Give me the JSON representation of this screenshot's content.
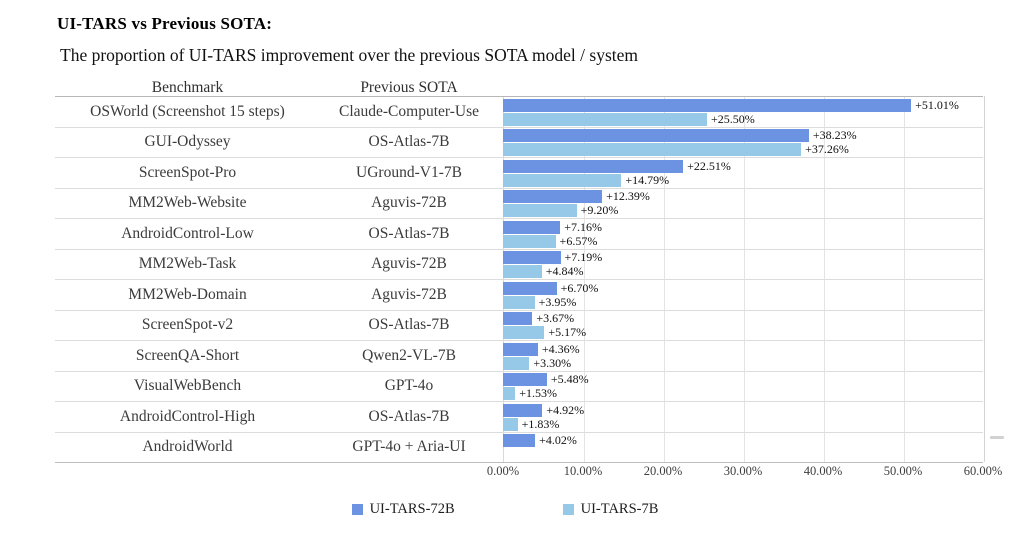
{
  "header": {
    "title": "UI-TARS vs Previous SOTA:",
    "subtitle": "The proportion of UI-TARS improvement over the previous SOTA model / system"
  },
  "table": {
    "columns": [
      "Benchmark",
      "Previous SOTA"
    ]
  },
  "chart_data": {
    "type": "bar",
    "orientation": "horizontal",
    "title": "UI-TARS vs Previous SOTA",
    "xlabel": "",
    "ylabel": "",
    "xlim": [
      0,
      60
    ],
    "x_ticks": [
      "0.00%",
      "10.00%",
      "20.00%",
      "30.00%",
      "40.00%",
      "50.00%",
      "60.00%"
    ],
    "grid": true,
    "legend_position": "bottom",
    "series": [
      {
        "name": "UI-TARS-72B",
        "color": "#6B93E2"
      },
      {
        "name": "UI-TARS-7B",
        "color": "#96C8E8"
      }
    ],
    "rows": [
      {
        "benchmark": "OSWorld (Screenshot 15 steps)",
        "previous_sota": "Claude-Computer-Use",
        "ui_tars_72b": 51.01,
        "ui_tars_7b": 25.5,
        "labels": [
          "+51.01%",
          "+25.50%"
        ]
      },
      {
        "benchmark": "GUI-Odyssey",
        "previous_sota": "OS-Atlas-7B",
        "ui_tars_72b": 38.23,
        "ui_tars_7b": 37.26,
        "labels": [
          "+38.23%",
          "+37.26%"
        ]
      },
      {
        "benchmark": "ScreenSpot-Pro",
        "previous_sota": "UGround-V1-7B",
        "ui_tars_72b": 22.51,
        "ui_tars_7b": 14.79,
        "labels": [
          "+22.51%",
          "+14.79%"
        ]
      },
      {
        "benchmark": "MM2Web-Website",
        "previous_sota": "Aguvis-72B",
        "ui_tars_72b": 12.39,
        "ui_tars_7b": 9.2,
        "labels": [
          "+12.39%",
          "+9.20%"
        ]
      },
      {
        "benchmark": "AndroidControl-Low",
        "previous_sota": "OS-Atlas-7B",
        "ui_tars_72b": 7.16,
        "ui_tars_7b": 6.57,
        "labels": [
          "+7.16%",
          "+6.57%"
        ]
      },
      {
        "benchmark": "MM2Web-Task",
        "previous_sota": "Aguvis-72B",
        "ui_tars_72b": 7.19,
        "ui_tars_7b": 4.84,
        "labels": [
          "+7.19%",
          "+4.84%"
        ]
      },
      {
        "benchmark": "MM2Web-Domain",
        "previous_sota": "Aguvis-72B",
        "ui_tars_72b": 6.7,
        "ui_tars_7b": 3.95,
        "labels": [
          "+6.70%",
          "+3.95%"
        ]
      },
      {
        "benchmark": "ScreenSpot-v2",
        "previous_sota": "OS-Atlas-7B",
        "ui_tars_72b": 3.67,
        "ui_tars_7b": 5.17,
        "labels": [
          "+3.67%",
          "+5.17%"
        ]
      },
      {
        "benchmark": "ScreenQA-Short",
        "previous_sota": "Qwen2-VL-7B",
        "ui_tars_72b": 4.36,
        "ui_tars_7b": 3.3,
        "labels": [
          "+4.36%",
          "+3.30%"
        ]
      },
      {
        "benchmark": "VisualWebBench",
        "previous_sota": "GPT-4o",
        "ui_tars_72b": 5.48,
        "ui_tars_7b": 1.53,
        "labels": [
          "+5.48%",
          "+1.53%"
        ]
      },
      {
        "benchmark": "AndroidControl-High",
        "previous_sota": "OS-Atlas-7B",
        "ui_tars_72b": 4.92,
        "ui_tars_7b": 1.83,
        "labels": [
          "+4.92%",
          "+1.83%"
        ]
      },
      {
        "benchmark": "AndroidWorld",
        "previous_sota": "GPT-4o + Aria-UI",
        "ui_tars_72b": 4.02,
        "ui_tars_7b": null,
        "labels": [
          "+4.02%"
        ]
      }
    ]
  },
  "legend": {
    "items": [
      {
        "label": "UI-TARS-72B",
        "color": "#6B93E2"
      },
      {
        "label": "UI-TARS-7B",
        "color": "#96C8E8"
      }
    ]
  }
}
